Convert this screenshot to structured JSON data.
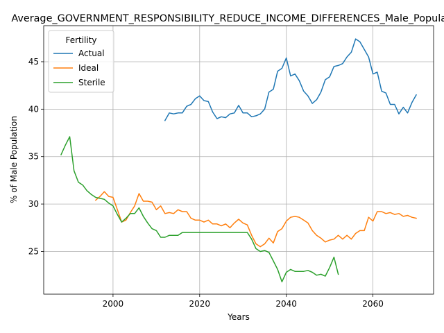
{
  "chart_data": {
    "type": "line",
    "title": "Average_GOVERNMENT_RESPONSIBILITY_REDUCE_INCOME_DIFFERENCES_Male_Population",
    "xlabel": "Years",
    "ylabel": "% of Male Population",
    "xlim": [
      1984,
      2074
    ],
    "ylim": [
      20.5,
      48.8
    ],
    "xticks": [
      2000,
      2020,
      2040,
      2060
    ],
    "yticks": [
      25,
      30,
      35,
      40,
      45
    ],
    "grid": true,
    "legend": {
      "title": "Fertility",
      "placement": "top-left"
    },
    "series": [
      {
        "name": "Actual",
        "color": "#1f77b4",
        "x": [
          2012,
          2013,
          2014,
          2015,
          2016,
          2017,
          2018,
          2019,
          2020,
          2021,
          2022,
          2023,
          2024,
          2025,
          2026,
          2027,
          2028,
          2029,
          2030,
          2031,
          2032,
          2033,
          2034,
          2035,
          2036,
          2037,
          2038,
          2039,
          2040,
          2041,
          2042,
          2043,
          2044,
          2045,
          2046,
          2047,
          2048,
          2049,
          2050,
          2051,
          2052,
          2053,
          2054,
          2055,
          2056,
          2057,
          2058,
          2059,
          2060,
          2061,
          2062,
          2063,
          2064,
          2065,
          2066,
          2067,
          2068,
          2069,
          2070
        ],
        "y": [
          38.8,
          39.6,
          39.5,
          39.6,
          39.6,
          40.3,
          40.5,
          41.1,
          41.4,
          40.9,
          40.8,
          39.7,
          39.0,
          39.2,
          39.1,
          39.5,
          39.6,
          40.4,
          39.6,
          39.6,
          39.2,
          39.3,
          39.5,
          40.0,
          41.8,
          42.1,
          44.0,
          44.3,
          45.4,
          43.5,
          43.7,
          43.0,
          41.9,
          41.4,
          40.6,
          41.0,
          41.8,
          43.1,
          43.4,
          44.5,
          44.6,
          44.8,
          45.5,
          46.0,
          47.4,
          47.1,
          46.3,
          45.5,
          43.7,
          43.9,
          41.9,
          41.7,
          40.5,
          40.5,
          39.5,
          40.2,
          39.6,
          40.7,
          41.5
        ]
      },
      {
        "name": "Ideal",
        "color": "#ff7f0e",
        "x": [
          1996,
          1997,
          1998,
          1999,
          2000,
          2001,
          2002,
          2003,
          2004,
          2005,
          2006,
          2007,
          2008,
          2009,
          2010,
          2011,
          2012,
          2013,
          2014,
          2015,
          2016,
          2017,
          2018,
          2019,
          2020,
          2021,
          2022,
          2023,
          2024,
          2025,
          2026,
          2027,
          2028,
          2029,
          2030,
          2031,
          2032,
          2033,
          2034,
          2035,
          2036,
          2037,
          2038,
          2039,
          2040,
          2041,
          2042,
          2043,
          2044,
          2045,
          2046,
          2047,
          2048,
          2049,
          2050,
          2051,
          2052,
          2053,
          2054,
          2055,
          2056,
          2057,
          2058,
          2059,
          2060,
          2061,
          2062,
          2063,
          2064,
          2065,
          2066,
          2067,
          2068,
          2069,
          2070
        ],
        "y": [
          30.4,
          30.8,
          31.3,
          30.8,
          30.7,
          29.4,
          28.1,
          28.3,
          29.1,
          29.8,
          31.1,
          30.3,
          30.3,
          30.2,
          29.4,
          29.8,
          29.0,
          29.1,
          29.0,
          29.4,
          29.2,
          29.2,
          28.5,
          28.3,
          28.3,
          28.1,
          28.3,
          27.9,
          27.9,
          27.7,
          27.9,
          27.5,
          28.0,
          28.4,
          28.0,
          27.8,
          26.7,
          25.8,
          25.5,
          25.8,
          26.4,
          25.9,
          27.1,
          27.4,
          28.2,
          28.6,
          28.7,
          28.6,
          28.3,
          28.0,
          27.2,
          26.7,
          26.4,
          26.0,
          26.2,
          26.3,
          26.7,
          26.3,
          26.7,
          26.3,
          26.9,
          27.2,
          27.2,
          28.6,
          28.2,
          29.2,
          29.2,
          29.0,
          29.1,
          28.9,
          29.0,
          28.7,
          28.8,
          28.6,
          28.5
        ]
      },
      {
        "name": "Sterile",
        "color": "#2ca02c",
        "x": [
          1988,
          1989,
          1990,
          1991,
          1992,
          1993,
          1994,
          1995,
          1996,
          1997,
          1998,
          1999,
          2000,
          2001,
          2002,
          2003,
          2004,
          2005,
          2006,
          2007,
          2008,
          2009,
          2010,
          2011,
          2012,
          2013,
          2014,
          2015,
          2016,
          2017,
          2018,
          2019,
          2020,
          2021,
          2022,
          2023,
          2024,
          2025,
          2026,
          2027,
          2028,
          2029,
          2030,
          2031,
          2032,
          2033,
          2034,
          2035,
          2036,
          2037,
          2038,
          2039,
          2040,
          2041,
          2042,
          2043,
          2044,
          2045,
          2046,
          2047,
          2048,
          2049,
          2050,
          2051,
          2052
        ],
        "y": [
          35.2,
          36.2,
          37.1,
          33.5,
          32.3,
          32.0,
          31.4,
          31.0,
          30.7,
          30.6,
          30.5,
          30.1,
          29.8,
          28.9,
          28.1,
          28.5,
          29.0,
          29.0,
          29.6,
          28.7,
          28.0,
          27.4,
          27.2,
          26.5,
          26.5,
          26.7,
          26.7,
          26.7,
          27.0,
          27.0,
          27.0,
          27.0,
          27.0,
          27.0,
          27.0,
          27.0,
          27.0,
          27.0,
          27.0,
          27.0,
          27.0,
          27.0,
          27.0,
          27.0,
          26.3,
          25.3,
          25.0,
          25.1,
          24.9,
          24.0,
          23.1,
          21.8,
          22.8,
          23.1,
          22.9,
          22.9,
          22.9,
          23.0,
          22.8,
          22.5,
          22.6,
          22.4,
          23.3,
          24.4,
          22.6
        ]
      }
    ]
  }
}
